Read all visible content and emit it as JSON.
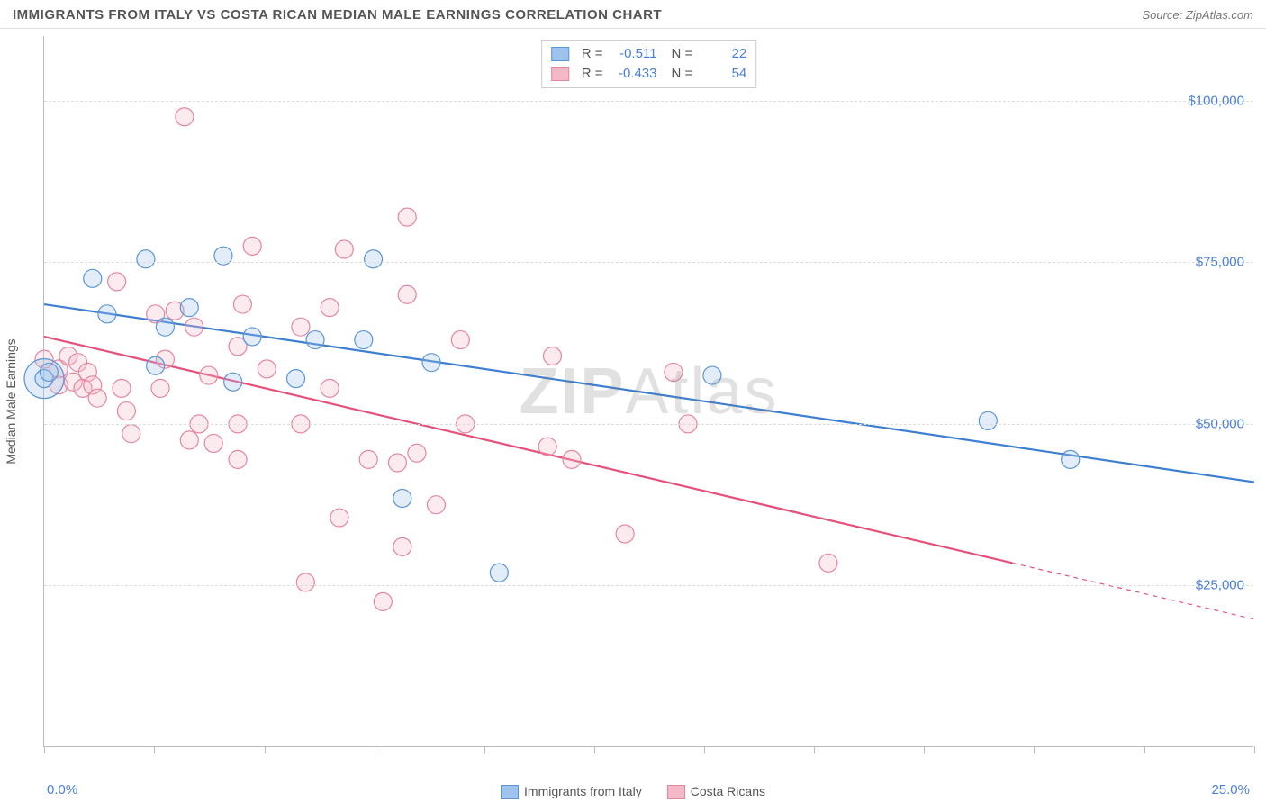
{
  "header": {
    "title": "IMMIGRANTS FROM ITALY VS COSTA RICAN MEDIAN MALE EARNINGS CORRELATION CHART",
    "source_prefix": "Source: ",
    "source_name": "ZipAtlas.com"
  },
  "chart": {
    "type": "scatter",
    "y_axis_label": "Median Male Earnings",
    "x_min": 0.0,
    "x_max": 25.0,
    "x_min_label": "0.0%",
    "x_max_label": "25.0%",
    "y_min": 0,
    "y_max": 110000,
    "y_gridlines": [
      25000,
      50000,
      75000,
      100000
    ],
    "y_tick_labels": [
      "$25,000",
      "$50,000",
      "$75,000",
      "$100,000"
    ],
    "x_tick_positions": [
      0,
      2.27,
      4.55,
      6.82,
      9.09,
      11.36,
      13.64,
      15.91,
      18.18,
      20.45,
      22.73,
      25.0
    ],
    "background_color": "#ffffff",
    "grid_color": "#dddddd",
    "axis_color": "#bbbbbb",
    "marker_radius": 10,
    "marker_stroke_width": 1.2,
    "marker_fill_opacity": 0.3,
    "trend_line_width": 2.2,
    "series": [
      {
        "name": "Immigrants from Italy",
        "color_fill": "#9ec3ec",
        "color_stroke": "#5a95d6",
        "color_line": "#3f7fd1",
        "R_label": "R =",
        "R_value": "-0.511",
        "N_label": "N =",
        "N_value": "22",
        "trend": {
          "x1": 0.0,
          "y1": 68500,
          "x2": 25.0,
          "y2": 41000
        },
        "points": [
          {
            "x": 0.0,
            "y": 57000,
            "r": 22
          },
          {
            "x": 0.0,
            "y": 57000
          },
          {
            "x": 0.1,
            "y": 58000
          },
          {
            "x": 1.0,
            "y": 72500
          },
          {
            "x": 1.3,
            "y": 67000
          },
          {
            "x": 2.1,
            "y": 75500
          },
          {
            "x": 2.3,
            "y": 59000
          },
          {
            "x": 2.5,
            "y": 65000
          },
          {
            "x": 3.0,
            "y": 68000
          },
          {
            "x": 3.7,
            "y": 76000
          },
          {
            "x": 3.9,
            "y": 56500
          },
          {
            "x": 4.3,
            "y": 63500
          },
          {
            "x": 5.2,
            "y": 57000
          },
          {
            "x": 5.6,
            "y": 63000
          },
          {
            "x": 6.6,
            "y": 63000
          },
          {
            "x": 6.8,
            "y": 75500
          },
          {
            "x": 7.4,
            "y": 38500
          },
          {
            "x": 8.0,
            "y": 59500
          },
          {
            "x": 9.4,
            "y": 27000
          },
          {
            "x": 13.8,
            "y": 57500
          },
          {
            "x": 19.5,
            "y": 50500
          },
          {
            "x": 21.2,
            "y": 44500
          }
        ]
      },
      {
        "name": "Costa Ricans",
        "color_fill": "#f3b9c7",
        "color_stroke": "#e586a0",
        "color_line": "#e6517a",
        "R_label": "R =",
        "R_value": "-0.433",
        "N_label": "N =",
        "N_value": "54",
        "trend": {
          "x1": 0.0,
          "y1": 63500,
          "x2": 20.0,
          "y2": 28500,
          "x2_dash": 25.0,
          "y2_dash": 19800
        },
        "points": [
          {
            "x": 0.0,
            "y": 60000
          },
          {
            "x": 0.3,
            "y": 58500
          },
          {
            "x": 0.3,
            "y": 56000
          },
          {
            "x": 0.5,
            "y": 60500
          },
          {
            "x": 0.6,
            "y": 56500
          },
          {
            "x": 0.7,
            "y": 59500
          },
          {
            "x": 0.8,
            "y": 55500
          },
          {
            "x": 0.9,
            "y": 58000
          },
          {
            "x": 1.0,
            "y": 56000
          },
          {
            "x": 1.1,
            "y": 54000
          },
          {
            "x": 1.5,
            "y": 72000
          },
          {
            "x": 1.6,
            "y": 55500
          },
          {
            "x": 1.7,
            "y": 52000
          },
          {
            "x": 1.8,
            "y": 48500
          },
          {
            "x": 2.3,
            "y": 67000
          },
          {
            "x": 2.4,
            "y": 55500
          },
          {
            "x": 2.5,
            "y": 60000
          },
          {
            "x": 2.7,
            "y": 67500
          },
          {
            "x": 2.9,
            "y": 97500
          },
          {
            "x": 3.0,
            "y": 47500
          },
          {
            "x": 3.1,
            "y": 65000
          },
          {
            "x": 3.2,
            "y": 50000
          },
          {
            "x": 3.4,
            "y": 57500
          },
          {
            "x": 3.5,
            "y": 47000
          },
          {
            "x": 4.0,
            "y": 62000
          },
          {
            "x": 4.0,
            "y": 50000
          },
          {
            "x": 4.0,
            "y": 44500
          },
          {
            "x": 4.1,
            "y": 68500
          },
          {
            "x": 4.3,
            "y": 77500
          },
          {
            "x": 4.6,
            "y": 58500
          },
          {
            "x": 5.3,
            "y": 65000
          },
          {
            "x": 5.3,
            "y": 50000
          },
          {
            "x": 5.4,
            "y": 25500
          },
          {
            "x": 5.9,
            "y": 55500
          },
          {
            "x": 5.9,
            "y": 68000
          },
          {
            "x": 6.1,
            "y": 35500
          },
          {
            "x": 6.2,
            "y": 77000
          },
          {
            "x": 6.7,
            "y": 44500
          },
          {
            "x": 7.0,
            "y": 22500
          },
          {
            "x": 7.3,
            "y": 44000
          },
          {
            "x": 7.4,
            "y": 31000
          },
          {
            "x": 7.5,
            "y": 82000
          },
          {
            "x": 7.5,
            "y": 70000
          },
          {
            "x": 7.7,
            "y": 45500
          },
          {
            "x": 8.1,
            "y": 37500
          },
          {
            "x": 8.6,
            "y": 63000
          },
          {
            "x": 8.7,
            "y": 50000
          },
          {
            "x": 10.4,
            "y": 46500
          },
          {
            "x": 10.5,
            "y": 60500
          },
          {
            "x": 10.9,
            "y": 44500
          },
          {
            "x": 12.0,
            "y": 33000
          },
          {
            "x": 13.0,
            "y": 58000
          },
          {
            "x": 13.3,
            "y": 50000
          },
          {
            "x": 16.2,
            "y": 28500
          }
        ]
      }
    ]
  },
  "watermark": {
    "bold": "ZIP",
    "light": "Atlas"
  }
}
